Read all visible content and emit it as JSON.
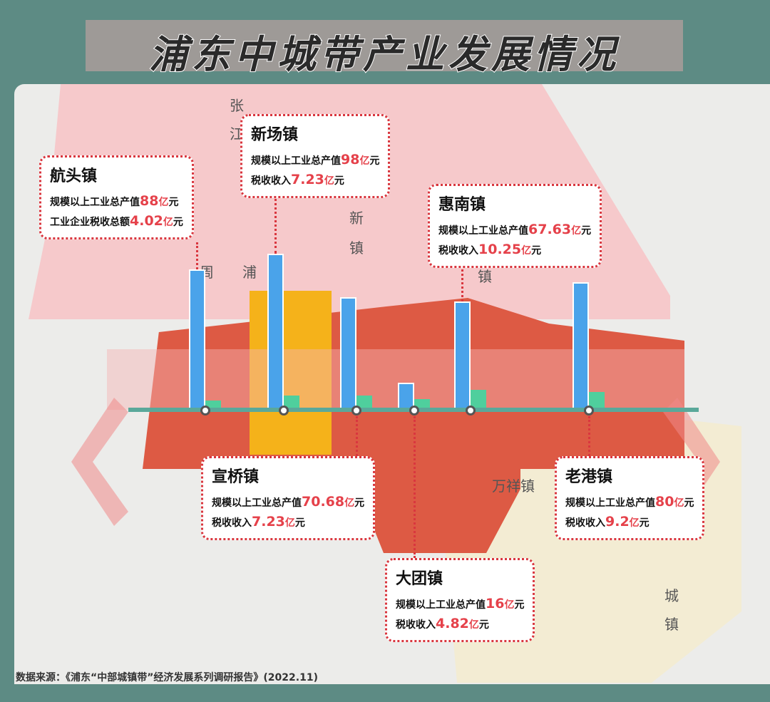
{
  "title": "浦东中城带产业发展情况",
  "source": "数据来源：《浦东“中部城镇带”经济发展系列调研报告》(2022.11)",
  "map_labels": [
    "万祥镇",
    "新",
    "镇",
    "周",
    "浦",
    "张",
    "江",
    "镇",
    "城",
    "镇"
  ],
  "colors": {
    "output_bar": "#4aa3ea",
    "tax_bar": "#4fcf9d",
    "highlight_region": "#f5b21a",
    "core_region": "#dd5a44",
    "north_region": "#f6c9cb",
    "south_region": "#f3ecd3",
    "callout_border": "#d9363e",
    "value_text": "#e5414a"
  },
  "towns": [
    {
      "name": "航头镇",
      "line1_label": "规模以上工业总产值",
      "line1_value": "88",
      "line1_unit": "亿元",
      "line2_label": "工业企业税收总额",
      "line2_value": "4.02",
      "line2_unit": "亿元"
    },
    {
      "name": "新场镇",
      "line1_label": "规模以上工业总产值",
      "line1_value": "98",
      "line1_unit": "亿元",
      "line2_label": "税收收入",
      "line2_value": "7.23",
      "line2_unit": "亿元"
    },
    {
      "name": "宣桥镇",
      "line1_label": "规模以上工业总产值",
      "line1_value": "70.68",
      "line1_unit": "亿元",
      "line2_label": "税收收入",
      "line2_value": "7.23",
      "line2_unit": "亿元"
    },
    {
      "name": "大团镇",
      "line1_label": "规模以上工业总产值",
      "line1_value": "16",
      "line1_unit": "亿元",
      "line2_label": "税收收入",
      "line2_value": "4.82",
      "line2_unit": "亿元"
    },
    {
      "name": "惠南镇",
      "line1_label": "规模以上工业总产值",
      "line1_value": "67.63",
      "line1_unit": "亿元",
      "line2_label": "税收收入",
      "line2_value": "10.25",
      "line2_unit": "亿元"
    },
    {
      "name": "老港镇",
      "line1_label": "规模以上工业总产值",
      "line1_value": "80",
      "line1_unit": "亿元",
      "line2_label": "税收收入",
      "line2_value": "9.2",
      "line2_unit": "亿元"
    }
  ],
  "chart_data": {
    "type": "bar",
    "categories": [
      "航头镇",
      "新场镇",
      "宣桥镇",
      "大团镇",
      "惠南镇",
      "老港镇"
    ],
    "series": [
      {
        "name": "规模以上工业总产值",
        "values": [
          88,
          98,
          70.68,
          16,
          67.63,
          80
        ]
      },
      {
        "name": "税收收入",
        "values": [
          4.02,
          7.23,
          7.23,
          4.82,
          10.25,
          9.2
        ]
      }
    ]
  }
}
